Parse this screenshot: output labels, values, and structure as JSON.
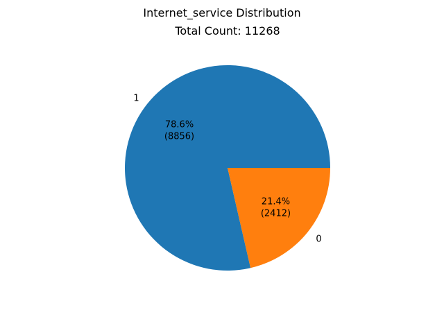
{
  "chart_data": {
    "type": "pie",
    "title": "Internet_service Distribution",
    "subtitle": "Total Count: 11268",
    "slices": [
      {
        "label": "1",
        "value": 8856,
        "percent_label": "78.6%",
        "count_label": "(8856)",
        "color": "#1f77b4"
      },
      {
        "label": "0",
        "value": 2412,
        "percent_label": "21.4%",
        "count_label": "(2412)",
        "color": "#ff7f0e"
      }
    ]
  }
}
